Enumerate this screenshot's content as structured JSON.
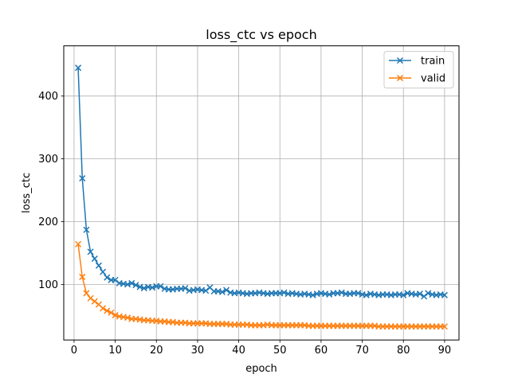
{
  "chart_data": {
    "type": "line",
    "title": "loss_ctc vs epoch",
    "xlabel": "epoch",
    "ylabel": "loss_ctc",
    "xlim": [
      -2.5,
      93.5
    ],
    "ylim": [
      11.5,
      480
    ],
    "xticks": [
      0,
      10,
      20,
      30,
      40,
      50,
      60,
      70,
      80,
      90
    ],
    "yticks": [
      100,
      200,
      300,
      400
    ],
    "grid": true,
    "legend_position": "top-right",
    "x": [
      1,
      2,
      3,
      4,
      5,
      6,
      7,
      8,
      9,
      10,
      11,
      12,
      13,
      14,
      15,
      16,
      17,
      18,
      19,
      20,
      21,
      22,
      23,
      24,
      25,
      26,
      27,
      28,
      29,
      30,
      31,
      32,
      33,
      34,
      35,
      36,
      37,
      38,
      39,
      40,
      41,
      42,
      43,
      44,
      45,
      46,
      47,
      48,
      49,
      50,
      51,
      52,
      53,
      54,
      55,
      56,
      57,
      58,
      59,
      60,
      61,
      62,
      63,
      64,
      65,
      66,
      67,
      68,
      69,
      70,
      71,
      72,
      73,
      74,
      75,
      76,
      77,
      78,
      79,
      80,
      81,
      82,
      83,
      84,
      85,
      86,
      87,
      88,
      89,
      90
    ],
    "series": [
      {
        "name": "train",
        "color": "#1f77b4",
        "marker": "x",
        "values": [
          445,
          269,
          187,
          152,
          141,
          130,
          120,
          111,
          107,
          107,
          102,
          101,
          100,
          102,
          99,
          96,
          94,
          96,
          95,
          97,
          97,
          93,
          92,
          92,
          93,
          93,
          94,
          90,
          91,
          92,
          91,
          90,
          95,
          89,
          89,
          88,
          91,
          87,
          86,
          87,
          86,
          85,
          86,
          86,
          87,
          86,
          85,
          86,
          86,
          86,
          87,
          85,
          86,
          85,
          84,
          85,
          84,
          83,
          85,
          86,
          85,
          84,
          86,
          86,
          87,
          85,
          85,
          86,
          86,
          84,
          83,
          85,
          84,
          83,
          84,
          84,
          83,
          84,
          84,
          83,
          86,
          85,
          84,
          85,
          81,
          86,
          84,
          83,
          84,
          83
        ]
      },
      {
        "name": "valid",
        "color": "#ff7f0e",
        "marker": "x",
        "values": [
          164,
          112,
          86,
          78,
          73,
          68,
          62,
          58,
          55,
          51,
          49,
          48,
          47,
          45,
          45,
          44,
          43,
          43,
          42,
          42,
          41,
          41,
          40,
          40,
          39,
          39,
          39,
          38,
          38,
          38,
          38,
          38,
          37,
          37,
          37,
          37,
          37,
          36,
          36,
          36,
          36,
          36,
          35,
          35,
          35,
          35,
          36,
          35,
          35,
          35,
          35,
          35,
          35,
          35,
          35,
          35,
          34,
          34,
          34,
          34,
          34,
          34,
          34,
          34,
          34,
          34,
          34,
          34,
          34,
          34,
          34,
          34,
          34,
          33,
          33,
          33,
          33,
          33,
          33,
          33,
          33,
          33,
          33,
          33,
          33,
          33,
          33,
          33,
          33,
          33
        ]
      }
    ]
  }
}
